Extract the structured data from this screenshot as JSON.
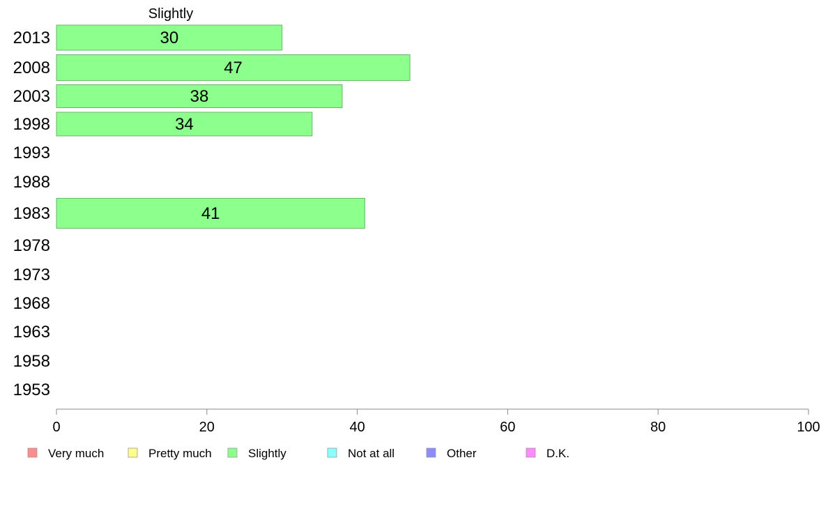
{
  "chart_data": {
    "type": "bar",
    "orientation": "horizontal",
    "header": "Slightly",
    "categories": [
      "2013",
      "2008",
      "2003",
      "1998",
      "1993",
      "1988",
      "1983",
      "1978",
      "1973",
      "1968",
      "1963",
      "1958",
      "1953"
    ],
    "series": [
      {
        "name": "Slightly",
        "values": [
          30,
          47,
          38,
          34,
          null,
          null,
          41,
          null,
          null,
          null,
          null,
          null,
          null
        ]
      }
    ],
    "bar_labels": [
      "30",
      "47",
      "38",
      "34",
      "",
      "",
      "41",
      "",
      "",
      "",
      "",
      "",
      ""
    ],
    "xlim": [
      0,
      100
    ],
    "xticks": [
      0,
      20,
      40,
      60,
      80,
      100
    ],
    "xtick_labels": [
      "0",
      "20",
      "40",
      "60",
      "80",
      "100"
    ],
    "grid": false,
    "legend_position": "bottom",
    "legend": [
      {
        "label": "Very much",
        "color": "#ff8c8c"
      },
      {
        "label": "Pretty much",
        "color": "#ffff8c"
      },
      {
        "label": "Slightly",
        "color": "#8cff8c"
      },
      {
        "label": "Not at all",
        "color": "#8cffff"
      },
      {
        "label": "Other",
        "color": "#8c8cff"
      },
      {
        "label": "D.K.",
        "color": "#ff8cff"
      }
    ],
    "bar_color": "#8cff8c",
    "bar_stroke": "#66b866"
  }
}
